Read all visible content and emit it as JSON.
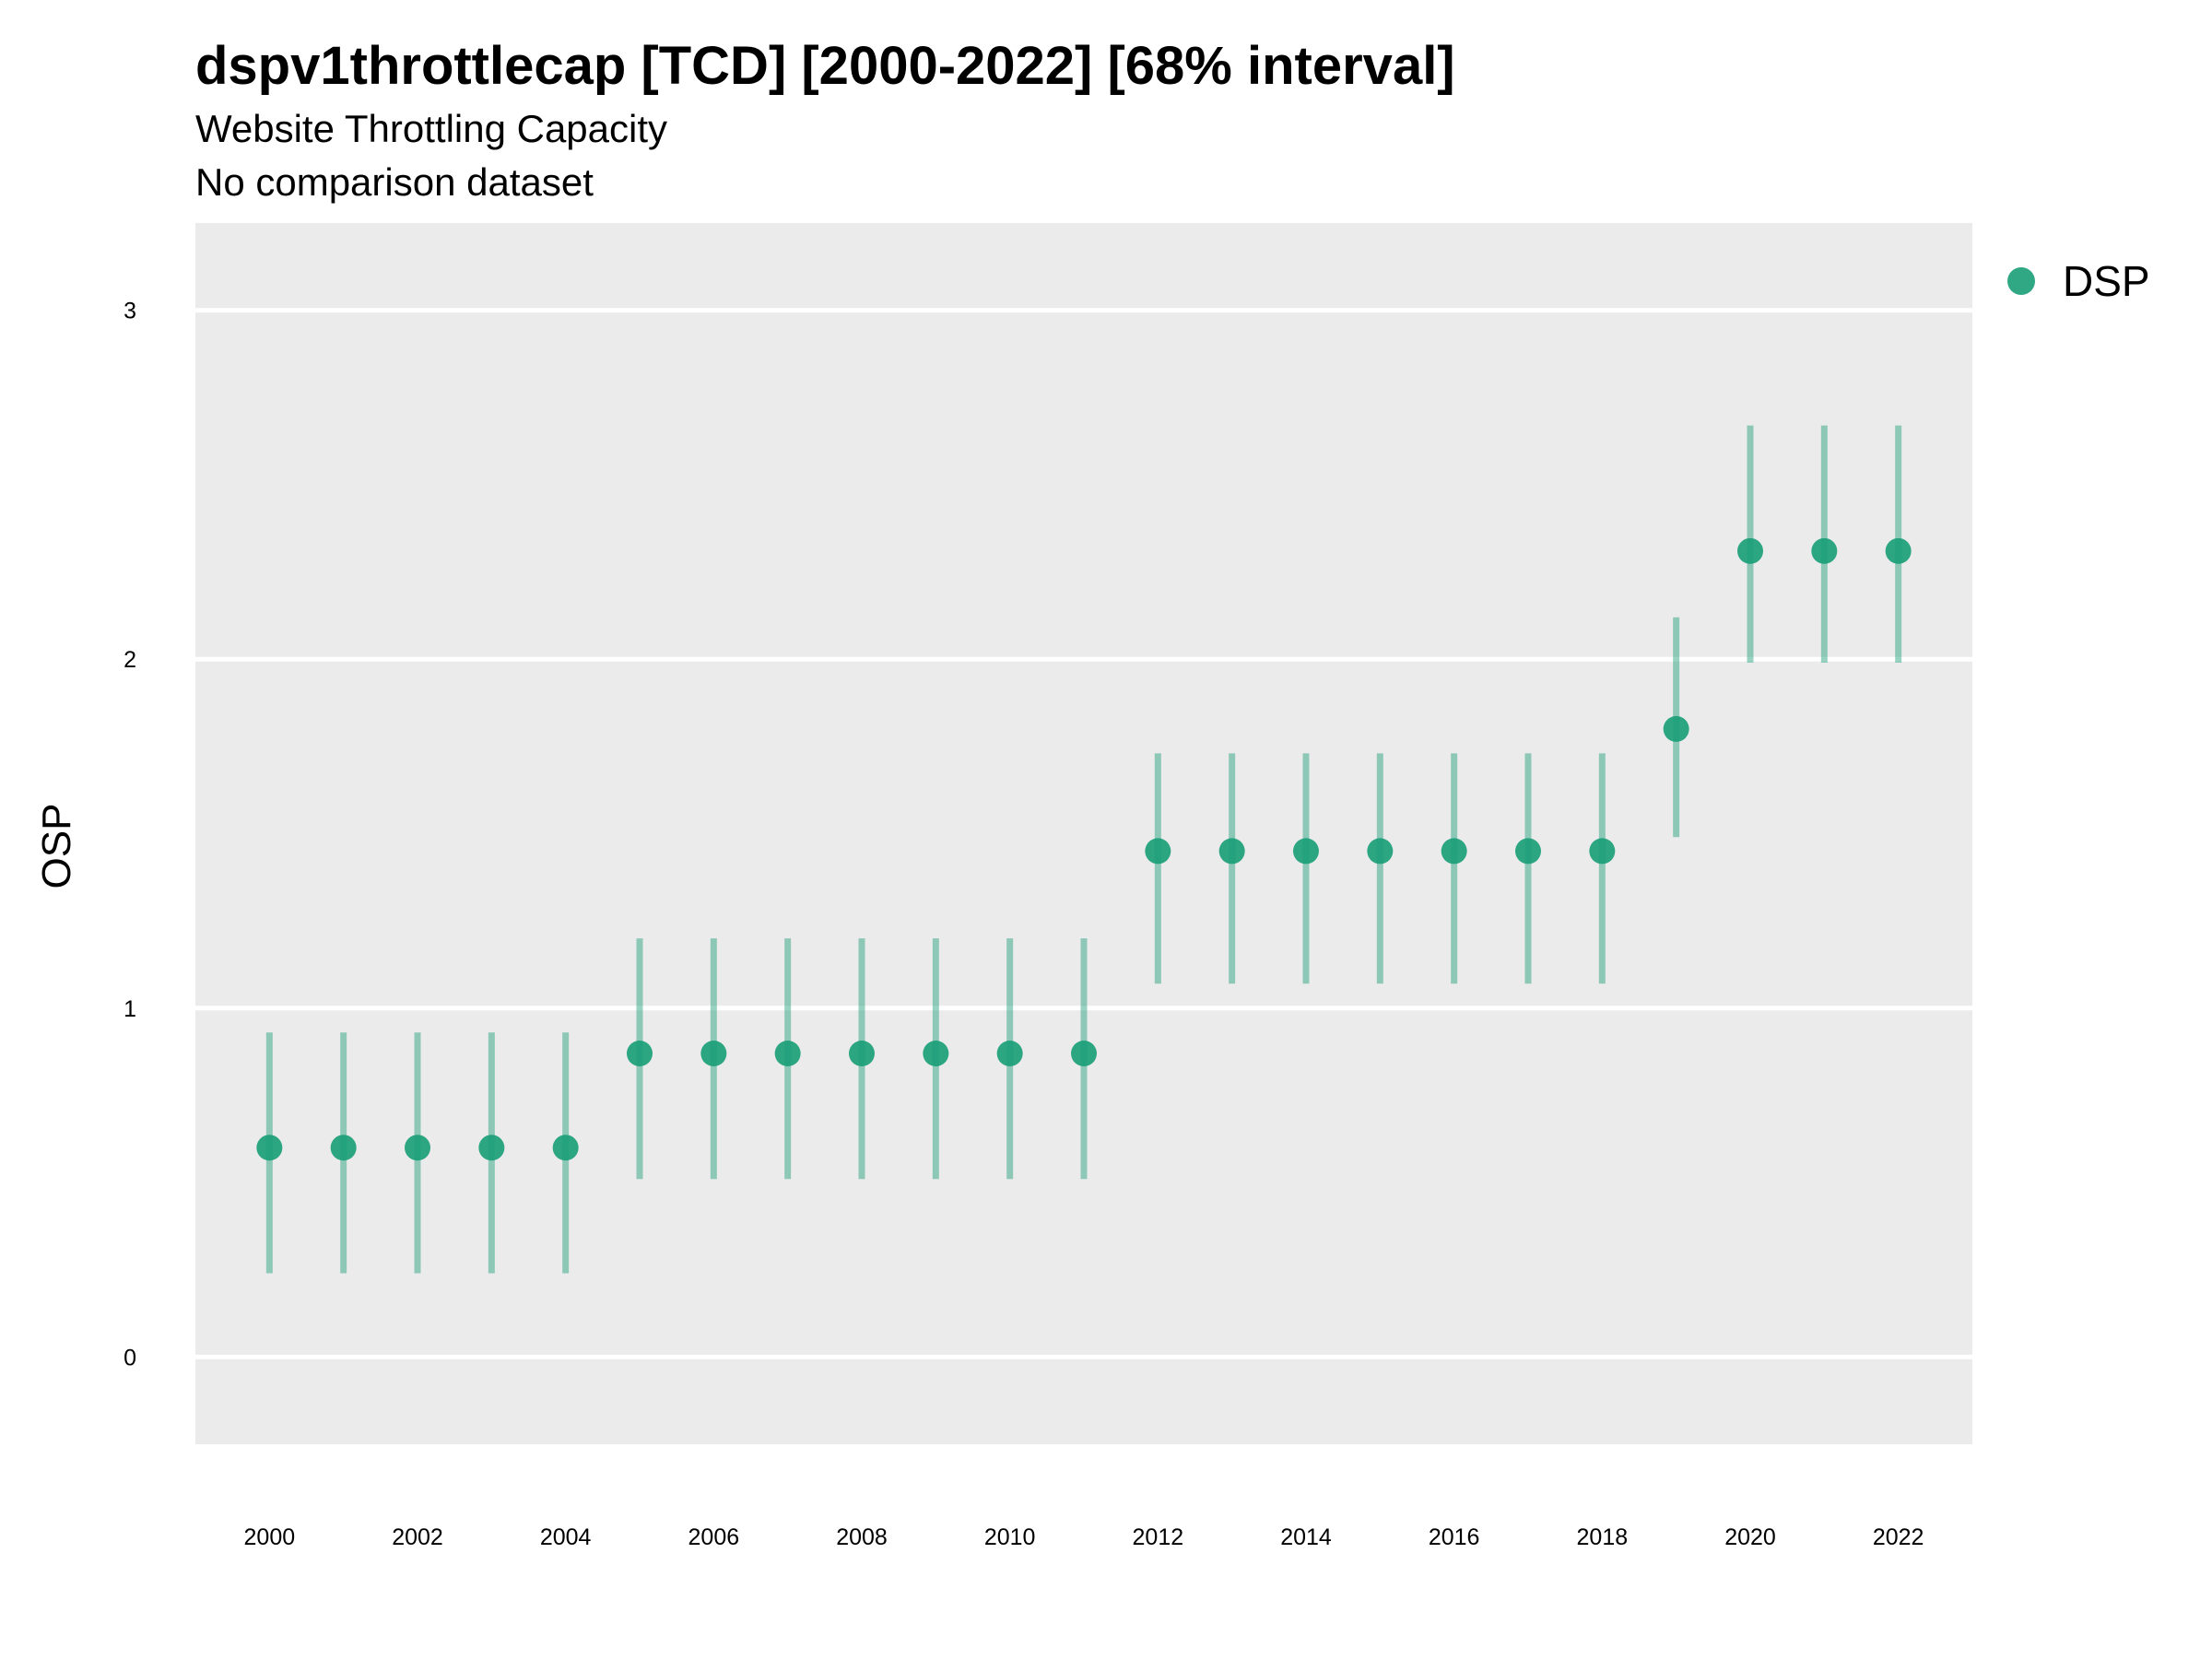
{
  "chart_data": {
    "type": "scatter",
    "title": "dspv1throttlecap [TCD] [2000-2022] [68% interval]",
    "subtitle": "Website Throttling Capacity",
    "caption": "No comparison dataset",
    "xlabel": "",
    "ylabel": "OSP",
    "xlim": [
      1999,
      2023
    ],
    "ylim": [
      -0.25,
      3.25
    ],
    "y_ticks": [
      0,
      1,
      2,
      3
    ],
    "x_ticks": [
      2000,
      2002,
      2004,
      2006,
      2008,
      2010,
      2012,
      2014,
      2016,
      2018,
      2020,
      2022
    ],
    "grid": true,
    "legend_position": "right",
    "series": [
      {
        "name": "DSP",
        "color": "#1b9e77",
        "x": [
          2000,
          2001,
          2002,
          2003,
          2004,
          2005,
          2006,
          2007,
          2008,
          2009,
          2010,
          2011,
          2012,
          2013,
          2014,
          2015,
          2016,
          2017,
          2018,
          2019,
          2020,
          2021,
          2022
        ],
        "y": [
          0.6,
          0.6,
          0.6,
          0.6,
          0.6,
          0.87,
          0.87,
          0.87,
          0.87,
          0.87,
          0.87,
          0.87,
          1.45,
          1.45,
          1.45,
          1.45,
          1.45,
          1.45,
          1.45,
          1.8,
          2.31,
          2.31,
          2.31
        ],
        "lower": [
          0.24,
          0.24,
          0.24,
          0.24,
          0.24,
          0.51,
          0.51,
          0.51,
          0.51,
          0.51,
          0.51,
          0.51,
          1.07,
          1.07,
          1.07,
          1.07,
          1.07,
          1.07,
          1.07,
          1.49,
          1.99,
          1.99,
          1.99
        ],
        "upper": [
          0.93,
          0.93,
          0.93,
          0.93,
          0.93,
          1.2,
          1.2,
          1.2,
          1.2,
          1.2,
          1.2,
          1.2,
          1.73,
          1.73,
          1.73,
          1.73,
          1.73,
          1.73,
          1.73,
          2.12,
          2.67,
          2.67,
          2.67
        ]
      }
    ]
  }
}
